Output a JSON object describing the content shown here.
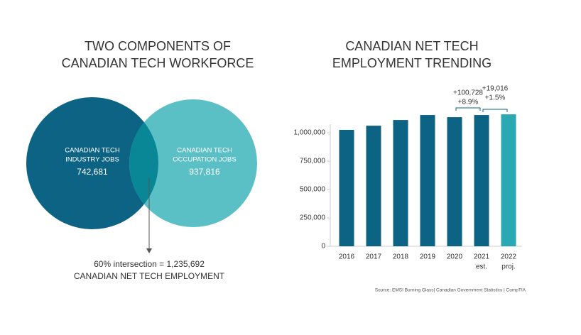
{
  "chart_data": [
    {
      "type": "venn",
      "title": [
        "TWO COMPONENTS OF",
        "CANADIAN TECH WORKFORCE"
      ],
      "sets": [
        {
          "label": [
            "CANADIAN TECH",
            "INDUSTRY JOBS"
          ],
          "value": 742681,
          "value_label": "742,681",
          "color": "#0d6384"
        },
        {
          "label": [
            "CANADIAN TECH",
            "OCCUPATION JOBS"
          ],
          "value": 937816,
          "value_label": "937,816",
          "color": "#5bbfc6"
        }
      ],
      "intersection": {
        "color": "#0a8796",
        "label": [
          "60% intersection = 1,235,692",
          "CANADIAN NET TECH EMPLOYMENT"
        ]
      }
    },
    {
      "type": "bar",
      "title": [
        "CANADIAN NET TECH",
        "EMPLOYMENT TRENDING"
      ],
      "categories": [
        "2016",
        "2017",
        "2018",
        "2019",
        "2020",
        "2021",
        "2022"
      ],
      "category_notes": [
        null,
        null,
        null,
        null,
        null,
        "est.",
        "proj."
      ],
      "values": [
        1025000,
        1062000,
        1112000,
        1156000,
        1137000,
        1156000,
        1162000
      ],
      "colors": [
        "#0d6384",
        "#0d6384",
        "#0d6384",
        "#0d6384",
        "#0d6384",
        "#0d6384",
        "#2aa9b5"
      ],
      "ylim": [
        0,
        1200000
      ],
      "yticks": [
        0,
        {
          "value": 250000,
          "label": "250,000"
        },
        {
          "value": 500000,
          "label": "500,000"
        },
        {
          "value": 750000,
          "label": "750,000"
        },
        {
          "value": 1000000,
          "label": "1,000,000"
        }
      ],
      "annotations": [
        {
          "text": "+100,728",
          "subtext": "+8.9%"
        },
        {
          "text": "+19,016",
          "subtext": "+1.5%"
        }
      ],
      "source": "Source: EMSI Burning Glass| Canadian Government Statistics | CompTIA"
    }
  ]
}
